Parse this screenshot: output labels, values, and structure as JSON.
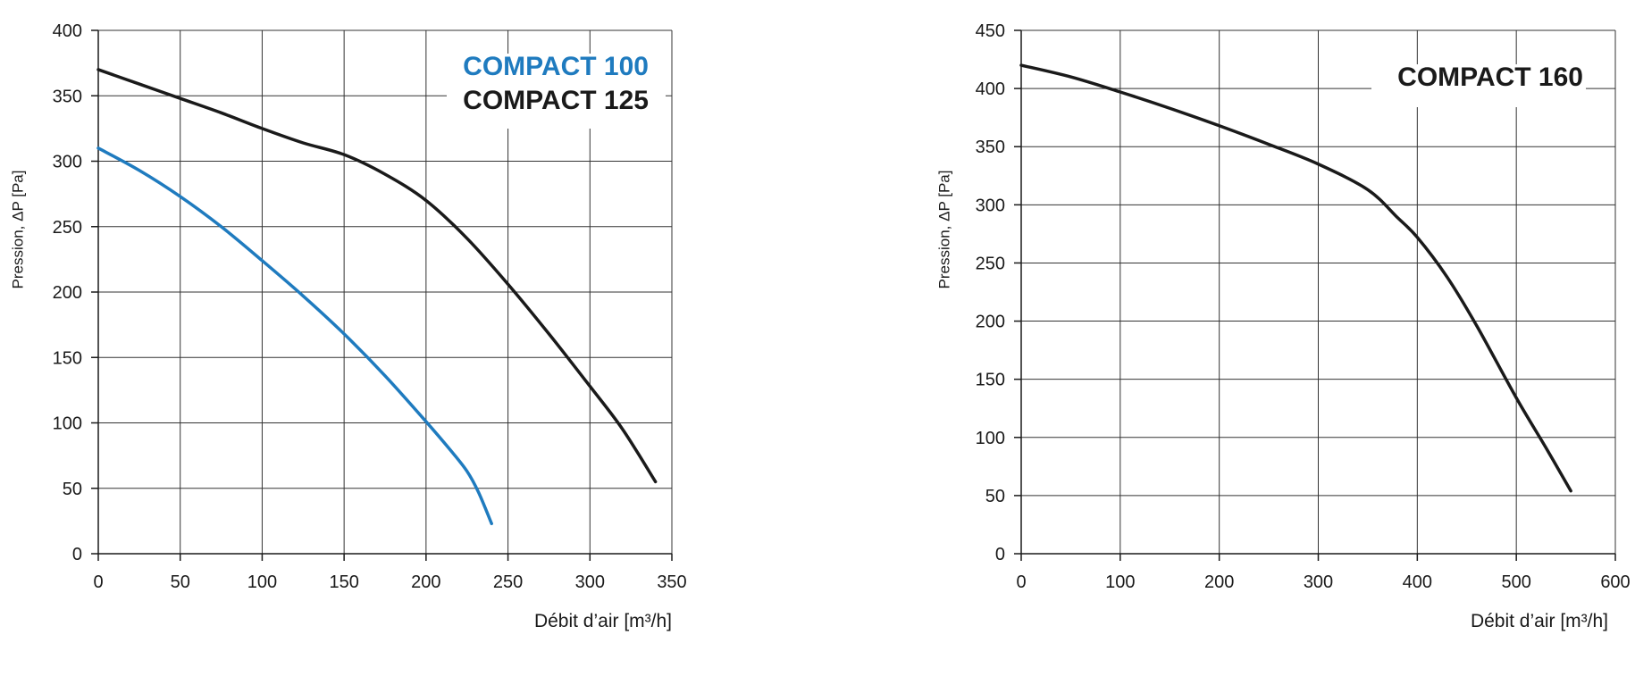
{
  "chart_data": [
    {
      "type": "line",
      "xlabel": "Débit d’air [m³/h]",
      "ylabel": "Pression, ΔP [Pa]",
      "xlim": [
        0,
        350
      ],
      "ylim": [
        0,
        400
      ],
      "xticks": [
        0,
        50,
        100,
        150,
        200,
        250,
        300,
        350
      ],
      "yticks": [
        0,
        50,
        100,
        150,
        200,
        250,
        300,
        350,
        400
      ],
      "grid": true,
      "legend_position": "top-right",
      "series": [
        {
          "name": "COMPACT 100",
          "color": "#1f7bbf",
          "x": [
            0,
            25,
            50,
            75,
            100,
            125,
            150,
            175,
            200,
            215,
            225,
            232,
            240
          ],
          "y": [
            310,
            293,
            273,
            250,
            224,
            197,
            168,
            136,
            101,
            79,
            63,
            47,
            23
          ]
        },
        {
          "name": "COMPACT 125",
          "color": "#1a1a1a",
          "x": [
            0,
            25,
            50,
            75,
            100,
            125,
            150,
            175,
            200,
            225,
            250,
            275,
            300,
            320,
            340
          ],
          "y": [
            370,
            359,
            348,
            337,
            325,
            314,
            305,
            290,
            270,
            241,
            206,
            168,
            128,
            95,
            55
          ]
        }
      ]
    },
    {
      "type": "line",
      "xlabel": "Débit d’air [m³/h]",
      "ylabel": "Pression, ΔP [Pa]",
      "xlim": [
        0,
        600
      ],
      "ylim": [
        0,
        450
      ],
      "xticks": [
        0,
        100,
        200,
        300,
        400,
        500,
        600
      ],
      "yticks": [
        0,
        50,
        100,
        150,
        200,
        250,
        300,
        350,
        400,
        450
      ],
      "grid": true,
      "legend_position": "top-right",
      "series": [
        {
          "name": "COMPACT 160",
          "color": "#1a1a1a",
          "x": [
            0,
            50,
            100,
            150,
            200,
            250,
            300,
            350,
            380,
            400,
            430,
            460,
            500,
            530,
            555
          ],
          "y": [
            420,
            410,
            397,
            383,
            368,
            352,
            335,
            313,
            289,
            272,
            238,
            196,
            134,
            91,
            54
          ]
        }
      ]
    }
  ]
}
